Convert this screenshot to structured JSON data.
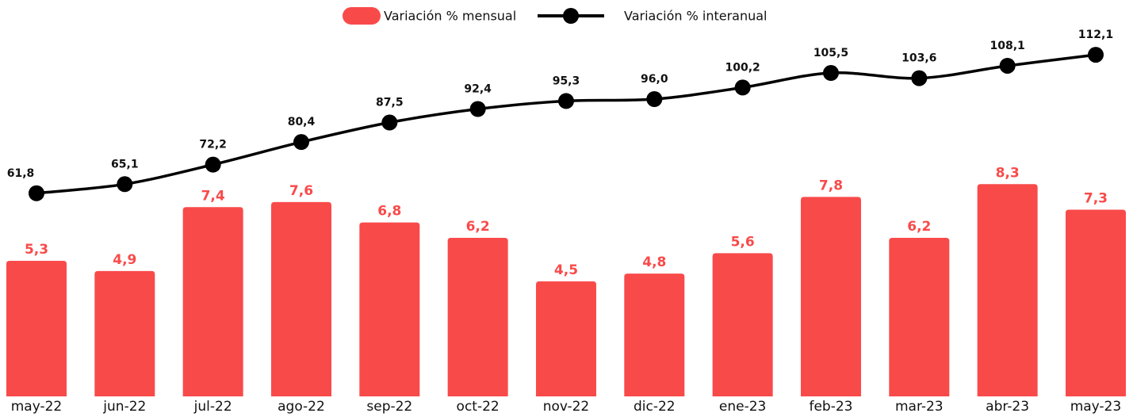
{
  "chart_data": {
    "type": "bar-line",
    "categories": [
      "may-22",
      "jun-22",
      "jul-22",
      "ago-22",
      "sep-22",
      "oct-22",
      "nov-22",
      "dic-22",
      "ene-23",
      "feb-23",
      "mar-23",
      "abr-23",
      "may-23"
    ],
    "series": [
      {
        "name": "Variación % mensual",
        "type": "bar",
        "color": "#f94a4a",
        "values": [
          5.3,
          4.9,
          7.4,
          7.6,
          6.8,
          6.2,
          4.5,
          4.8,
          5.6,
          7.8,
          6.2,
          8.3,
          7.3
        ],
        "value_labels": [
          "5,3",
          "4,9",
          "7,4",
          "7,6",
          "6,8",
          "6,2",
          "4,5",
          "4,8",
          "5,6",
          "7,8",
          "6,2",
          "8,3",
          "7,3"
        ]
      },
      {
        "name": "Variación % interanual",
        "type": "line",
        "color": "#000000",
        "axis": "y2",
        "values": [
          61.8,
          65.1,
          72.2,
          80.4,
          87.5,
          92.4,
          95.3,
          96.0,
          100.2,
          105.5,
          103.6,
          108.1,
          112.1
        ],
        "value_labels": [
          "61,8",
          "65,1",
          "72,2",
          "80,4",
          "87,5",
          "92,4",
          "95,3",
          "96,0",
          "100,2",
          "105,5",
          "103,6",
          "108,1",
          "112,1"
        ]
      }
    ],
    "ylim": [
      0,
      15.5
    ],
    "y2lim": [
      -12,
      132
    ],
    "legend": "top"
  }
}
